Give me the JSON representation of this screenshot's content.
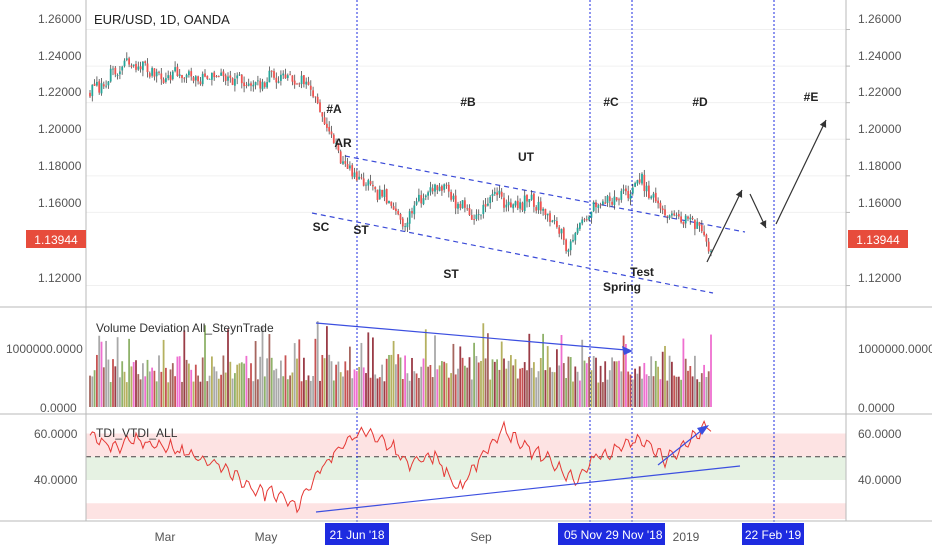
{
  "title": "EUR/USD, 1D, OANDA",
  "price_axis": {
    "ticks": [
      "1.26000",
      "1.24000",
      "1.22000",
      "1.20000",
      "1.18000",
      "1.16000",
      "1.12000"
    ],
    "tick_values": [
      1.26,
      1.24,
      1.22,
      1.2,
      1.18,
      1.16,
      1.12
    ],
    "range": [
      1.1121,
      1.2663
    ],
    "current_price": "1.13944",
    "current_price_color": "#e74c3c"
  },
  "phase_labels": [
    "#A",
    "#B",
    "#C",
    "#D",
    "#E"
  ],
  "wyckoff_labels": [
    "SC",
    "AR",
    "ST",
    "ST",
    "UT",
    "Spring",
    "Test"
  ],
  "volume_panel": {
    "title": "Volume Deviation All_SteynTrade",
    "ticks": [
      "1000000.0000",
      "0.0000"
    ],
    "tick_values": [
      1000000,
      0
    ],
    "range": [
      0,
      1550000
    ]
  },
  "tdi_panel": {
    "title": "TDI_VTDI_ALL",
    "ticks": [
      "60.0000",
      "40.0000"
    ],
    "tick_values": [
      60,
      40
    ],
    "range": [
      23.5,
      66
    ],
    "bands": {
      "upper": [
        50,
        60
      ],
      "lower": [
        40,
        50
      ],
      "bottom": [
        23.5,
        30
      ]
    }
  },
  "x_axis": {
    "ticks": [
      "Mar",
      "May",
      "Sep",
      "2019"
    ]
  },
  "highlighted_dates": [
    "21 Jun '18",
    "05 Nov",
    "29 Nov '18",
    "22 Feb '19"
  ],
  "colors": {
    "up": "#26a69a",
    "down": "#ef5350",
    "wick": "#4a4a4a",
    "vline": "#1e2be0",
    "channel": "#3b4bd8",
    "tdi_line": "#e53935",
    "arrow_blue": "#3c4fe0",
    "date_badge": "#1e2be0",
    "band_red": "#fde3e3",
    "band_green": "#e6f2e3"
  },
  "chart_data": [
    {
      "type": "candlestick",
      "title": "EUR/USD, 1D, OANDA",
      "x_ticks": [
        "Mar",
        "May",
        "Sep",
        "2019"
      ],
      "y_ticks": [
        1.26,
        1.24,
        1.22,
        1.2,
        1.18,
        1.16,
        1.12
      ],
      "ylim": [
        1.1121,
        1.2663
      ],
      "last_price": 1.13944,
      "series": [
        {
          "name": "close_path",
          "t": [
            0,
            8,
            16,
            24,
            32,
            40,
            48,
            56,
            64,
            72,
            80,
            88,
            96,
            104,
            112,
            120,
            128,
            136,
            144,
            152,
            160,
            168,
            176,
            184,
            192,
            200,
            208,
            216,
            224,
            232,
            240,
            248,
            256,
            264,
            270
          ],
          "close": [
            1.225,
            1.233,
            1.241,
            1.239,
            1.234,
            1.236,
            1.232,
            1.236,
            1.232,
            1.228,
            1.235,
            1.233,
            1.229,
            1.203,
            1.183,
            1.175,
            1.168,
            1.155,
            1.168,
            1.176,
            1.165,
            1.157,
            1.171,
            1.163,
            1.167,
            1.158,
            1.141,
            1.159,
            1.166,
            1.169,
            1.177,
            1.161,
            1.157,
            1.154,
            1.139
          ]
        }
      ],
      "annotations": [
        "#A",
        "#B",
        "#C",
        "#D",
        "#E",
        "SC",
        "AR",
        "ST",
        "ST",
        "UT",
        "Spring",
        "Test"
      ]
    },
    {
      "type": "bar",
      "title": "Volume Deviation All_SteynTrade",
      "y_ticks": [
        1000000,
        0
      ],
      "ylim": [
        0,
        1550000
      ]
    },
    {
      "type": "line",
      "title": "TDI_VTDI_ALL",
      "y_ticks": [
        60,
        40
      ],
      "ylim": [
        23.5,
        66
      ],
      "dashed_level": 50,
      "t": [
        0,
        10,
        20,
        30,
        40,
        50,
        60,
        70,
        80,
        90,
        100,
        110,
        120,
        130,
        140,
        150,
        160,
        170,
        180,
        190,
        200,
        210,
        220,
        230,
        240,
        250,
        260,
        270
      ],
      "values": [
        60,
        54,
        57,
        55,
        52,
        48,
        45,
        36,
        34,
        29,
        44,
        56,
        61,
        55,
        47,
        51,
        35,
        50,
        62,
        54,
        48,
        40,
        50,
        54,
        58,
        49,
        56,
        64
      ]
    }
  ]
}
